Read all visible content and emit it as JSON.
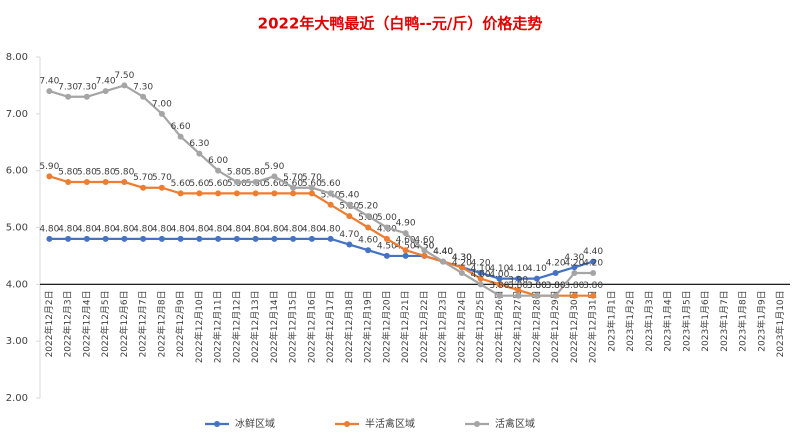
{
  "chart_data": {
    "type": "line",
    "title": "2022年大鸭最近（白鸭--元/斤）价格走势",
    "categories": [
      "2022年12月2日",
      "2022年12月3日",
      "2022年12月4日",
      "2022年12月5日",
      "2022年12月6日",
      "2022年12月7日",
      "2022年12月8日",
      "2022年12月9日",
      "2022年12月10日",
      "2022年12月11日",
      "2022年12月12日",
      "2022年12月13日",
      "2022年12月14日",
      "2022年12月15日",
      "2022年12月16日",
      "2022年12月17日",
      "2022年12月18日",
      "2022年12月19日",
      "2022年12月20日",
      "2022年12月21日",
      "2022年12月22日",
      "2022年12月23日",
      "2022年12月24日",
      "2022年12月25日",
      "2022年12月26日",
      "2022年12月27日",
      "2022年12月28日",
      "2022年12月29日",
      "2022年12月30日",
      "2022年12月31日",
      "2023年1月1日",
      "2023年1月2日",
      "2023年1月3日",
      "2023年1月4日",
      "2023年1月5日",
      "2023年1月6日",
      "2023年1月7日",
      "2023年1月8日",
      "2023年1月9日",
      "2023年1月10日"
    ],
    "series": [
      {
        "name": "冰鲜区域",
        "color": "#4472c4",
        "values": [
          4.8,
          4.8,
          4.8,
          4.8,
          4.8,
          4.8,
          4.8,
          4.8,
          4.8,
          4.8,
          4.8,
          4.8,
          4.8,
          4.8,
          4.8,
          4.8,
          4.7,
          4.6,
          4.5,
          4.5,
          4.5,
          4.4,
          4.3,
          4.2,
          4.1,
          4.1,
          4.1,
          4.2,
          4.3,
          4.4,
          null,
          null,
          null,
          null,
          null,
          null,
          null,
          null,
          null,
          null
        ],
        "value_labels": [
          "4.80",
          "4.80",
          "4.80",
          "4.80",
          "4.80",
          "4.80",
          "4.80",
          "4.80",
          "4.80",
          "4.80",
          "4.80",
          "4.80",
          "4.80",
          "4.80",
          "4.80",
          "4.80",
          "4.70",
          "4.60",
          "4.50",
          "4.50",
          "4.50",
          "4.40",
          "4.30",
          "4.20",
          "4.10",
          "4.10",
          "4.10",
          "4.20",
          "4.30",
          "4.40",
          null,
          null,
          null,
          null,
          null,
          null,
          null,
          null,
          null,
          null
        ]
      },
      {
        "name": "半活禽区域",
        "color": "#ed7d31",
        "values": [
          5.9,
          5.8,
          5.8,
          5.8,
          5.8,
          5.7,
          5.7,
          5.6,
          5.6,
          5.6,
          5.6,
          5.6,
          5.6,
          5.6,
          5.6,
          5.4,
          5.2,
          5.0,
          4.8,
          4.6,
          4.5,
          4.4,
          4.3,
          4.1,
          4.0,
          3.9,
          3.8,
          3.8,
          3.8,
          3.8,
          null,
          null,
          null,
          null,
          null,
          null,
          null,
          null,
          null,
          null
        ],
        "value_labels": [
          "5.90",
          "5.80",
          "5.80",
          "5.80",
          "5.80",
          "5.70",
          "5.70",
          "5.60",
          "5.60",
          "5.60",
          "5.60",
          "5.60",
          "5.60",
          "5.60",
          "5.60",
          "5.40",
          "5.20",
          "5.00",
          "4.80",
          "4.60",
          "4.50",
          "4.40",
          "4.30",
          "4.10",
          "4.00",
          "3.90",
          "3.80",
          "3.80",
          "3.80",
          "3.80",
          null,
          null,
          null,
          null,
          null,
          null,
          null,
          null,
          null,
          null
        ]
      },
      {
        "name": "活禽区域",
        "color": "#a5a5a5",
        "values": [
          7.4,
          7.3,
          7.3,
          7.4,
          7.5,
          7.3,
          7.0,
          6.6,
          6.3,
          6.0,
          5.8,
          5.8,
          5.9,
          5.7,
          5.7,
          5.6,
          5.4,
          5.2,
          5.0,
          4.9,
          4.6,
          4.4,
          4.2,
          4.0,
          3.8,
          3.8,
          3.8,
          3.8,
          4.2,
          4.2,
          null,
          null,
          null,
          null,
          null,
          null,
          null,
          null,
          null,
          null
        ],
        "value_labels": [
          "7.40",
          "7.30",
          "7.30",
          "7.40",
          "7.50",
          "7.30",
          "7.00",
          "6.60",
          "6.30",
          "6.00",
          "5.80",
          "5.80",
          "5.90",
          "5.70",
          "5.70",
          "5.60",
          "5.40",
          "5.20",
          "5.00",
          "4.90",
          "4.60",
          "4.40",
          "4.20",
          "4.00",
          "3.80",
          "3.80",
          "3.80",
          "3.80",
          "4.20",
          "4.20",
          null,
          null,
          null,
          null,
          null,
          null,
          null,
          null,
          null,
          null
        ]
      }
    ],
    "ylim": [
      2,
      8
    ],
    "yticks": [
      {
        "value": 2,
        "label": "2.00"
      },
      {
        "value": 3,
        "label": "3.00"
      },
      {
        "value": 4,
        "label": "4.00"
      },
      {
        "value": 5,
        "label": "5.00"
      },
      {
        "value": 6,
        "label": "6.00"
      },
      {
        "value": 7,
        "label": "7.00"
      },
      {
        "value": 8,
        "label": "8.00"
      }
    ],
    "x_axis_crosses": 4,
    "grid": false,
    "legend": "bottom"
  }
}
